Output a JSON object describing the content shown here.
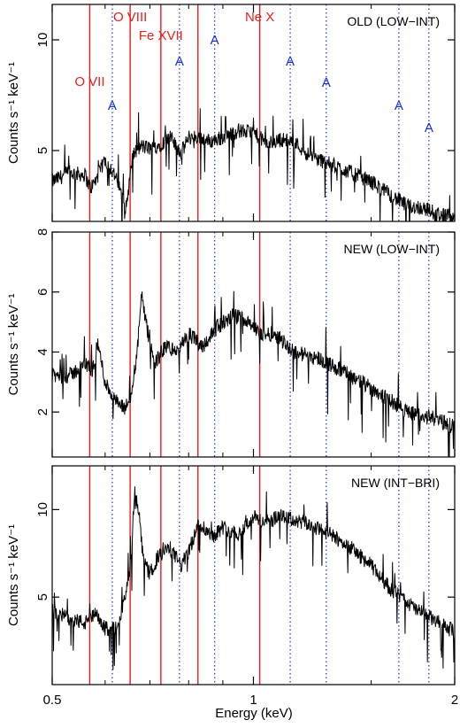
{
  "chart_data": [
    {
      "type": "line",
      "panel_label": "OLD (LOW−INT)",
      "ylabel": "Counts s⁻¹ keV⁻¹",
      "xlabel": "",
      "xscale": "log",
      "xlim": [
        0.5,
        2.0
      ],
      "ylim": [
        1.8,
        11.6
      ],
      "yticks": [
        5,
        10
      ],
      "series": [
        {
          "x": [
            0.5,
            0.53,
            0.56,
            0.57,
            0.58,
            0.6,
            0.62,
            0.635,
            0.645,
            0.66,
            0.68,
            0.7,
            0.72,
            0.75,
            0.78,
            0.8,
            0.83,
            0.86,
            0.9,
            0.95,
            1.0,
            1.05,
            1.1,
            1.15,
            1.2,
            1.25,
            1.3,
            1.4,
            1.5,
            1.6,
            1.7,
            1.8,
            1.9,
            2.0
          ],
          "y": [
            3.6,
            4.0,
            3.9,
            3.3,
            3.6,
            4.6,
            3.9,
            3.0,
            2.4,
            4.8,
            5.2,
            5.1,
            5.2,
            5.6,
            4.9,
            5.6,
            5.6,
            5.4,
            5.6,
            5.9,
            5.8,
            5.3,
            5.5,
            5.4,
            4.9,
            4.6,
            4.4,
            4.0,
            3.6,
            3.0,
            2.5,
            2.4,
            2.1,
            2.0
          ]
        }
      ]
    },
    {
      "type": "line",
      "panel_label": "NEW (LOW−INT)",
      "ylabel": "Counts s⁻¹ keV⁻¹",
      "xlabel": "",
      "xscale": "log",
      "xlim": [
        0.5,
        2.0
      ],
      "ylim": [
        0.5,
        8.0
      ],
      "yticks": [
        2,
        4,
        6,
        8
      ],
      "series": [
        {
          "x": [
            0.5,
            0.53,
            0.56,
            0.575,
            0.585,
            0.6,
            0.62,
            0.64,
            0.655,
            0.67,
            0.68,
            0.69,
            0.71,
            0.74,
            0.77,
            0.8,
            0.84,
            0.88,
            0.93,
            0.98,
            1.02,
            1.08,
            1.15,
            1.25,
            1.35,
            1.45,
            1.55,
            1.7,
            1.85,
            2.0
          ],
          "y": [
            3.2,
            3.2,
            3.6,
            3.4,
            4.3,
            3.0,
            2.4,
            2.1,
            2.4,
            4.0,
            5.9,
            5.0,
            3.6,
            4.2,
            4.0,
            4.6,
            4.2,
            4.8,
            5.2,
            5.1,
            4.6,
            4.6,
            4.0,
            3.8,
            3.4,
            3.0,
            2.6,
            2.0,
            1.8,
            1.5
          ]
        }
      ]
    },
    {
      "type": "line",
      "panel_label": "NEW (INT−BRI)",
      "ylabel": "Counts s⁻¹ keV⁻¹",
      "xlabel": "Energy (keV)",
      "xscale": "log",
      "xlim": [
        0.5,
        2.0
      ],
      "xticks": [
        0.5,
        1,
        2
      ],
      "xtick_labels": [
        "0.5",
        "1",
        "2"
      ],
      "ylim": [
        0.0,
        12.5
      ],
      "yticks": [
        5,
        10
      ],
      "series": [
        {
          "x": [
            0.5,
            0.53,
            0.56,
            0.58,
            0.6,
            0.62,
            0.64,
            0.655,
            0.665,
            0.675,
            0.685,
            0.7,
            0.72,
            0.75,
            0.78,
            0.8,
            0.83,
            0.85,
            0.87,
            0.9,
            0.95,
            1.0,
            1.02,
            1.05,
            1.1,
            1.2,
            1.3,
            1.4,
            1.5,
            1.6,
            1.75,
            1.9,
            2.0
          ],
          "y": [
            4.2,
            3.8,
            3.5,
            4.0,
            3.2,
            3.2,
            4.6,
            6.7,
            11.0,
            9.5,
            7.0,
            6.3,
            7.3,
            7.8,
            6.8,
            7.6,
            9.3,
            8.8,
            8.5,
            9.0,
            8.6,
            9.6,
            9.4,
            9.3,
            9.6,
            9.2,
            8.6,
            7.8,
            6.8,
            5.5,
            4.3,
            3.5,
            3.0
          ]
        }
      ]
    }
  ],
  "line_markers": {
    "emission": [
      {
        "label": "O VII",
        "energy": 0.569
      },
      {
        "label": "O VIII",
        "energy": 0.654
      },
      {
        "label": "Fe XVII",
        "energy": 0.727
      },
      {
        "label": "",
        "energy": 0.826
      },
      {
        "label": "Ne X",
        "energy": 1.022
      }
    ],
    "absorption": [
      {
        "label": "A",
        "energy": 0.615
      },
      {
        "label": "A",
        "energy": 0.775
      },
      {
        "label": "A",
        "energy": 0.875
      },
      {
        "label": "A",
        "energy": 1.135
      },
      {
        "label": "A",
        "energy": 1.285
      },
      {
        "label": "A",
        "energy": 1.65
      },
      {
        "label": "A",
        "energy": 1.83
      }
    ]
  },
  "colors": {
    "emission": "#e8201a",
    "absorption": "#1a2fd6",
    "spectrum": "#000000"
  }
}
